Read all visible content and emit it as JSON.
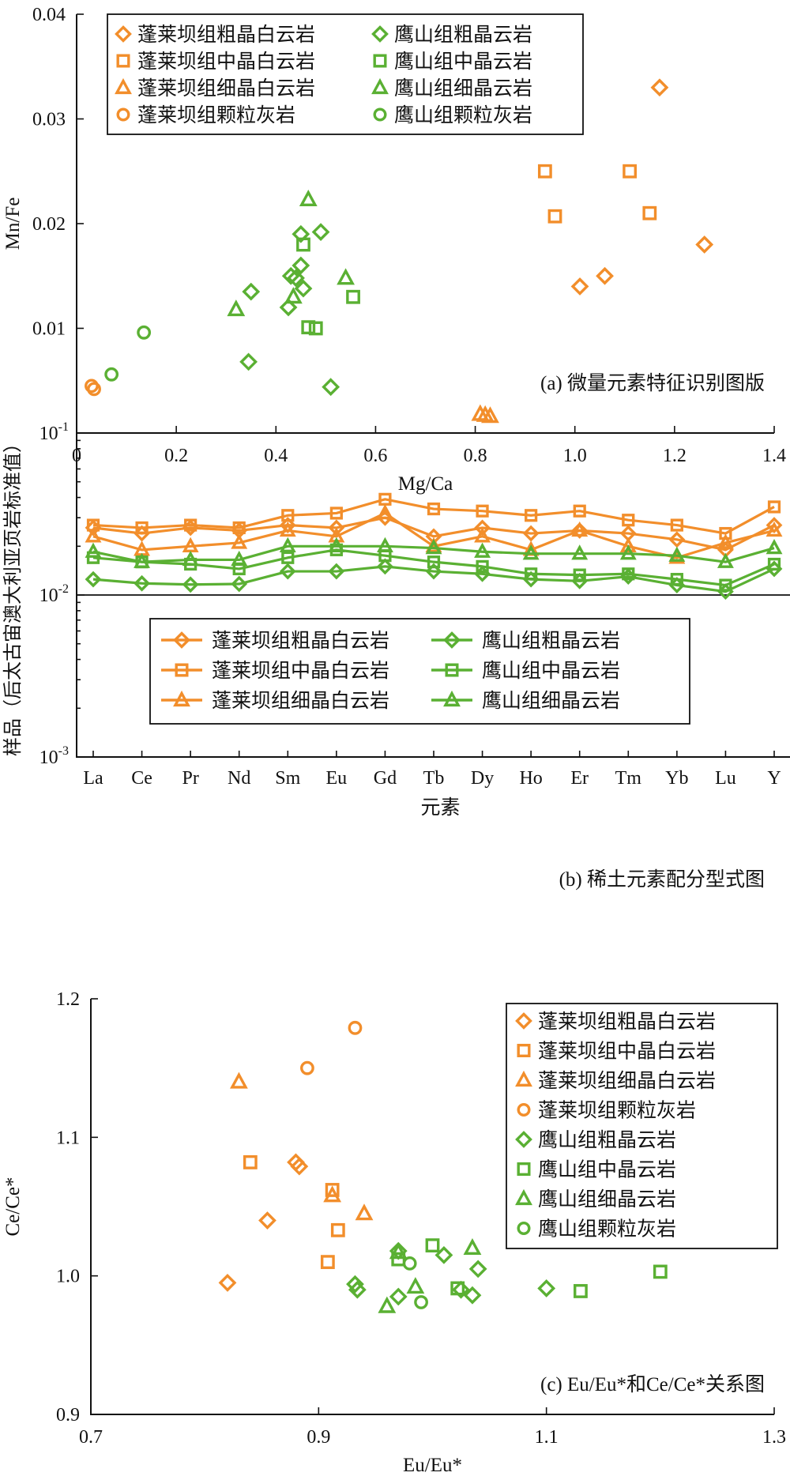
{
  "colors": {
    "orange": "#f28e2b",
    "green": "#5ab033",
    "axis": "#111111"
  },
  "chart_data": [
    {
      "panel": "a",
      "type": "scatter",
      "annotation": "(a) 微量元素特征识别图版",
      "xlabel": "Mg/Ca",
      "ylabel": "Mn/Fe",
      "xlim": [
        0,
        1.4
      ],
      "ylim": [
        0,
        0.04
      ],
      "xticks": [
        0,
        0.2,
        0.4,
        0.6,
        0.8,
        1.0,
        1.2,
        1.4
      ],
      "xtick_labels": [
        "0",
        "0.2",
        "0.4",
        "0.6",
        "0.8",
        "1.0",
        "1.2",
        "1.4"
      ],
      "yticks": [
        0.01,
        0.02,
        0.03,
        0.04
      ],
      "ytick_labels": [
        "0.01",
        "0.02",
        "0.03",
        "0.04"
      ],
      "legend_position": "top-left",
      "legend_columns": 2,
      "series": [
        {
          "name": "蓬莱坝组粗晶白云岩",
          "color": "orange",
          "marker": "diamond",
          "points": [
            [
              1.17,
              0.033
            ],
            [
              1.26,
              0.018
            ],
            [
              1.06,
              0.015
            ],
            [
              1.01,
              0.014
            ]
          ]
        },
        {
          "name": "蓬莱坝组中晶白云岩",
          "color": "orange",
          "marker": "square",
          "points": [
            [
              0.94,
              0.025
            ],
            [
              1.11,
              0.025
            ],
            [
              0.96,
              0.0207
            ],
            [
              1.15,
              0.021
            ]
          ]
        },
        {
          "name": "蓬莱坝组细晶白云岩",
          "color": "orange",
          "marker": "triangle",
          "points": [
            [
              0.81,
              0.0018
            ],
            [
              0.82,
              0.0017
            ],
            [
              0.83,
              0.0016
            ]
          ]
        },
        {
          "name": "蓬莱坝组颗粒灰岩",
          "color": "orange",
          "marker": "circle",
          "points": [
            [
              0.03,
              0.0045
            ],
            [
              0.035,
              0.0042
            ]
          ]
        },
        {
          "name": "鹰山组粗晶云岩",
          "color": "green",
          "marker": "diamond",
          "points": [
            [
              0.45,
              0.019
            ],
            [
              0.49,
              0.0192
            ],
            [
              0.45,
              0.016
            ],
            [
              0.43,
              0.015
            ],
            [
              0.44,
              0.0148
            ],
            [
              0.35,
              0.0135
            ],
            [
              0.455,
              0.0138
            ],
            [
              0.425,
              0.012
            ],
            [
              0.345,
              0.0068
            ],
            [
              0.51,
              0.0044
            ]
          ]
        },
        {
          "name": "鹰山组中晶云岩",
          "color": "green",
          "marker": "square",
          "points": [
            [
              0.455,
              0.018
            ],
            [
              0.555,
              0.013
            ],
            [
              0.465,
              0.0101
            ],
            [
              0.48,
              0.01
            ]
          ]
        },
        {
          "name": "鹰山组细晶云岩",
          "color": "green",
          "marker": "triangle",
          "points": [
            [
              0.465,
              0.0223
            ],
            [
              0.54,
              0.0148
            ],
            [
              0.32,
              0.0118
            ],
            [
              0.435,
              0.013
            ]
          ]
        },
        {
          "name": "鹰山组颗粒灰岩",
          "color": "green",
          "marker": "circle",
          "points": [
            [
              0.135,
              0.0096
            ],
            [
              0.07,
              0.0056
            ]
          ]
        }
      ]
    },
    {
      "panel": "b",
      "type": "line",
      "annotation": "(b) 稀土元素配分型式图",
      "xlabel": "元素",
      "ylabel": "样品（后太古宙澳大利亚页岩标准值）",
      "yscale": "log",
      "ylim": [
        0.001,
        0.1
      ],
      "yticks": [
        0.001,
        0.01,
        0.1
      ],
      "ytick_labels": [
        {
          "base": "10",
          "exp": "-3"
        },
        {
          "base": "10",
          "exp": "-2"
        },
        {
          "base": "10",
          "exp": "-1"
        }
      ],
      "categories": [
        "La",
        "Ce",
        "Pr",
        "Nd",
        "Sm",
        "Eu",
        "Gd",
        "Tb",
        "Dy",
        "Ho",
        "Er",
        "Tm",
        "Yb",
        "Lu",
        "Y"
      ],
      "legend_position": "lower-center",
      "legend_columns": 2,
      "series": [
        {
          "name": "蓬莱坝组粗晶白云岩",
          "color": "orange",
          "marker": "diamond",
          "values": [
            0.026,
            0.024,
            0.026,
            0.025,
            0.027,
            0.026,
            0.03,
            0.023,
            0.026,
            0.024,
            0.025,
            0.024,
            0.022,
            0.019,
            0.027
          ]
        },
        {
          "name": "蓬莱坝组中晶白云岩",
          "color": "orange",
          "marker": "square",
          "values": [
            0.027,
            0.026,
            0.027,
            0.026,
            0.031,
            0.032,
            0.039,
            0.034,
            0.033,
            0.031,
            0.033,
            0.029,
            0.027,
            0.024,
            0.035
          ]
        },
        {
          "name": "蓬莱坝组细晶白云岩",
          "color": "orange",
          "marker": "triangle",
          "values": [
            0.023,
            0.019,
            0.02,
            0.021,
            0.025,
            0.023,
            0.032,
            0.02,
            0.023,
            0.019,
            0.025,
            0.02,
            0.017,
            0.021,
            0.025
          ]
        },
        {
          "name": "鹰山组粗晶云岩",
          "color": "green",
          "marker": "diamond",
          "values": [
            0.0125,
            0.0118,
            0.0116,
            0.0117,
            0.014,
            0.014,
            0.015,
            0.014,
            0.0135,
            0.0125,
            0.0122,
            0.013,
            0.0115,
            0.0105,
            0.0145
          ]
        },
        {
          "name": "鹰山组中晶云岩",
          "color": "green",
          "marker": "square",
          "values": [
            0.017,
            0.016,
            0.0155,
            0.0145,
            0.017,
            0.019,
            0.0175,
            0.016,
            0.015,
            0.0135,
            0.0133,
            0.0135,
            0.0125,
            0.0115,
            0.0155
          ]
        },
        {
          "name": "鹰山组细晶云岩",
          "color": "green",
          "marker": "triangle",
          "values": [
            0.0185,
            0.016,
            0.0165,
            0.0165,
            0.02,
            0.02,
            0.02,
            0.0195,
            0.0185,
            0.018,
            0.018,
            0.018,
            0.0175,
            0.016,
            0.0195
          ]
        }
      ]
    },
    {
      "panel": "c",
      "type": "scatter",
      "annotation": "(c) Eu/Eu*和Ce/Ce*关系图",
      "xlabel": "Eu/Eu*",
      "ylabel": "Ce/Ce*",
      "xlim": [
        0.7,
        1.3
      ],
      "ylim": [
        0.9,
        1.2
      ],
      "xticks": [
        0.7,
        0.9,
        1.1,
        1.3
      ],
      "xtick_labels": [
        "0.7",
        "0.9",
        "1.1",
        "1.3"
      ],
      "yticks": [
        0.9,
        1.0,
        1.1,
        1.2
      ],
      "ytick_labels": [
        "0.9",
        "1.0",
        "1.1",
        "1.2"
      ],
      "legend_position": "top-right",
      "legend_columns": 1,
      "series": [
        {
          "name": "蓬莱坝组粗晶白云岩",
          "color": "orange",
          "marker": "diamond",
          "points": [
            [
              0.88,
              1.082
            ],
            [
              0.883,
              1.079
            ],
            [
              0.855,
              1.04
            ],
            [
              0.82,
              0.995
            ]
          ]
        },
        {
          "name": "蓬莱坝组中晶白云岩",
          "color": "orange",
          "marker": "square",
          "points": [
            [
              0.84,
              1.082
            ],
            [
              0.912,
              1.062
            ],
            [
              0.917,
              1.033
            ],
            [
              0.908,
              1.01
            ]
          ]
        },
        {
          "name": "蓬莱坝组细晶白云岩",
          "color": "orange",
          "marker": "triangle",
          "points": [
            [
              0.83,
              1.14
            ],
            [
              0.912,
              1.058
            ],
            [
              0.94,
              1.045
            ]
          ]
        },
        {
          "name": "蓬莱坝组颗粒灰岩",
          "color": "orange",
          "marker": "circle",
          "points": [
            [
              0.932,
              1.179
            ],
            [
              0.89,
              1.15
            ]
          ]
        },
        {
          "name": "鹰山组粗晶云岩",
          "color": "green",
          "marker": "diamond",
          "points": [
            [
              0.97,
              1.018
            ],
            [
              1.01,
              1.015
            ],
            [
              1.04,
              1.005
            ],
            [
              0.932,
              0.994
            ],
            [
              0.934,
              0.99
            ],
            [
              1.025,
              0.99
            ],
            [
              1.035,
              0.986
            ],
            [
              0.97,
              0.985
            ],
            [
              1.1,
              0.991
            ]
          ]
        },
        {
          "name": "鹰山组中晶云岩",
          "color": "green",
          "marker": "square",
          "points": [
            [
              1.0,
              1.022
            ],
            [
              0.97,
              1.012
            ],
            [
              1.2,
              1.003
            ],
            [
              1.13,
              0.989
            ],
            [
              1.022,
              0.991
            ]
          ]
        },
        {
          "name": "鹰山组细晶云岩",
          "color": "green",
          "marker": "triangle",
          "points": [
            [
              1.035,
              1.02
            ],
            [
              0.97,
              1.017
            ],
            [
              0.985,
              0.992
            ],
            [
              0.96,
              0.978
            ]
          ]
        },
        {
          "name": "鹰山组颗粒灰岩",
          "color": "green",
          "marker": "circle",
          "points": [
            [
              0.98,
              1.009
            ],
            [
              0.99,
              0.981
            ]
          ]
        }
      ]
    }
  ]
}
